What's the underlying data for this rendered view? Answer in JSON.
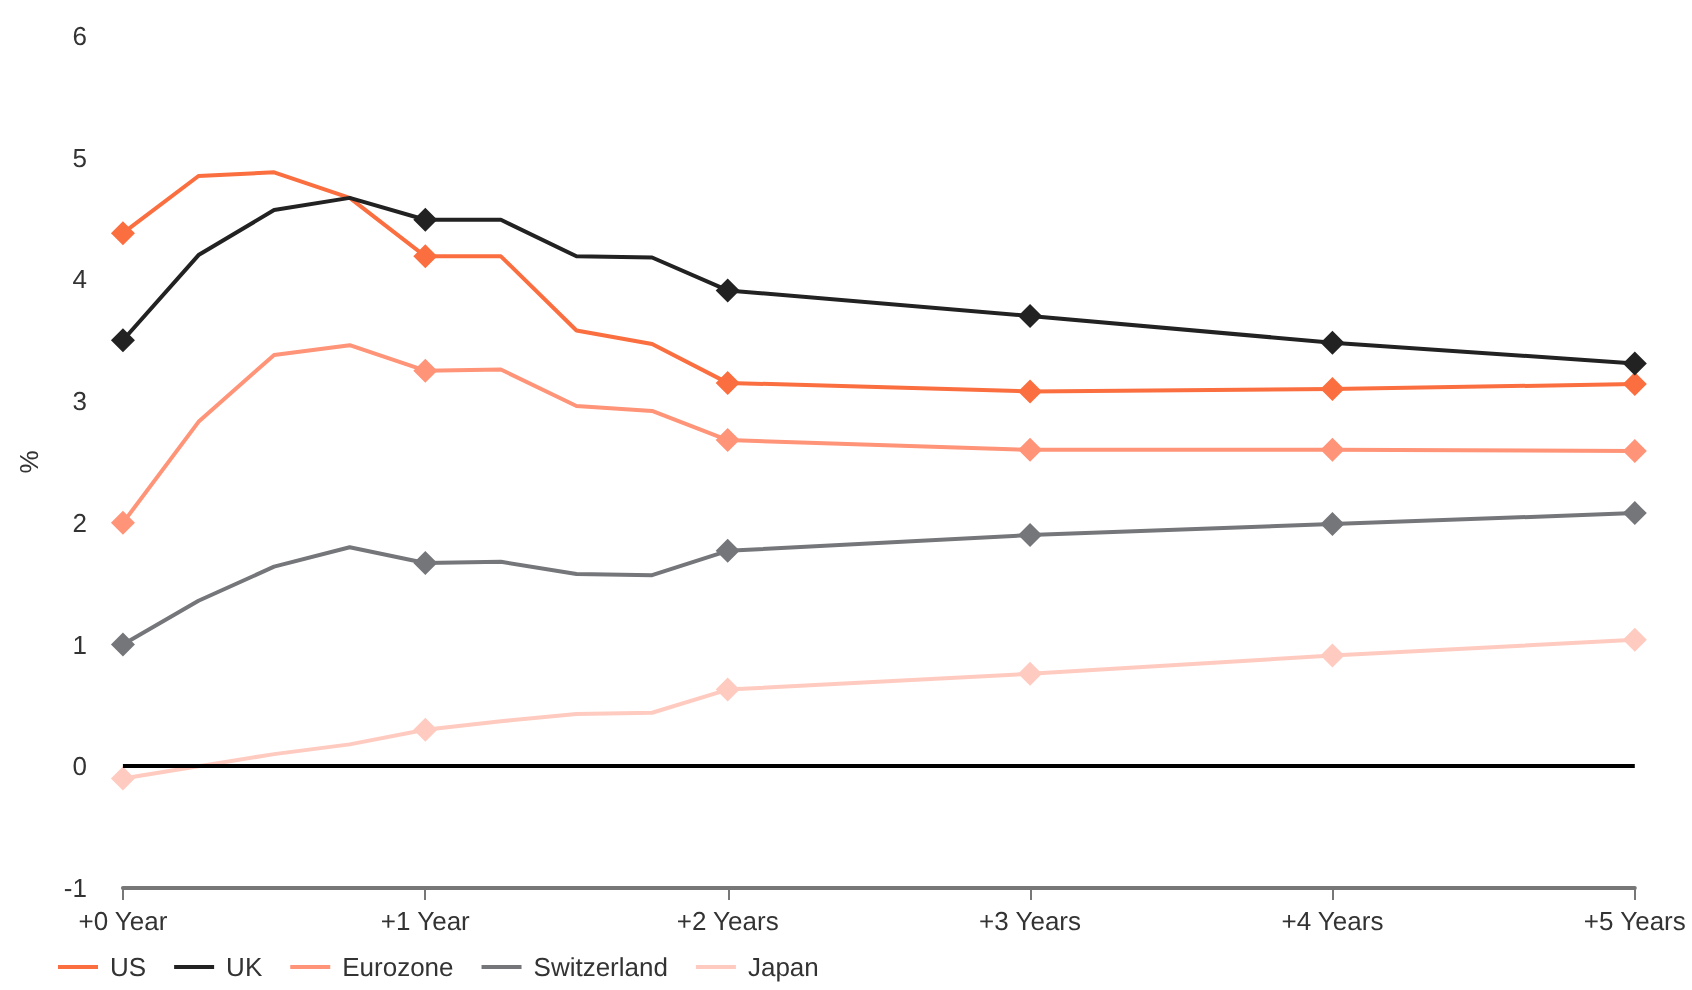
{
  "chart_data": {
    "type": "line",
    "ylabel": "%",
    "x": [
      0,
      0.25,
      0.5,
      0.75,
      1,
      1.25,
      1.5,
      1.75,
      2,
      3,
      4,
      5
    ],
    "xlim": [
      0,
      5
    ],
    "xticks": [
      {
        "value": 0,
        "label": "+0 Year"
      },
      {
        "value": 1,
        "label": "+1 Year"
      },
      {
        "value": 2,
        "label": "+2 Years"
      },
      {
        "value": 3,
        "label": "+3 Years"
      },
      {
        "value": 4,
        "label": "+4 Years"
      },
      {
        "value": 5,
        "label": "+5 Years"
      }
    ],
    "ylim": [
      -1,
      6
    ],
    "yticks": [
      -1,
      0,
      1,
      2,
      3,
      4,
      5,
      6
    ],
    "series": [
      {
        "name": "US",
        "color": "#fa6e3f",
        "values": [
          4.38,
          4.85,
          4.88,
          4.67,
          4.19,
          4.19,
          3.58,
          3.47,
          3.15,
          3.08,
          3.1,
          3.14
        ]
      },
      {
        "name": "UK",
        "color": "#222222",
        "values": [
          3.5,
          4.2,
          4.57,
          4.67,
          4.49,
          4.49,
          4.19,
          4.18,
          3.91,
          3.7,
          3.48,
          3.31
        ]
      },
      {
        "name": "Eurozone",
        "color": "#ff9478",
        "values": [
          2.0,
          2.83,
          3.38,
          3.46,
          3.25,
          3.26,
          2.96,
          2.92,
          2.68,
          2.6,
          2.6,
          2.59
        ]
      },
      {
        "name": "Switzerland",
        "color": "#75767a",
        "values": [
          1.0,
          1.36,
          1.64,
          1.8,
          1.67,
          1.68,
          1.58,
          1.57,
          1.77,
          1.9,
          1.99,
          2.08
        ]
      },
      {
        "name": "Japan",
        "color": "#ffcbc0",
        "values": [
          -0.1,
          0.0,
          0.1,
          0.18,
          0.3,
          0.37,
          0.43,
          0.44,
          0.63,
          0.76,
          0.91,
          1.04
        ]
      }
    ],
    "ref_lines": [
      {
        "axis": "y",
        "value": 0,
        "color": "#000000"
      }
    ],
    "marker": "diamond",
    "line_style": "solid",
    "grid": false,
    "legend": "bottom left"
  }
}
